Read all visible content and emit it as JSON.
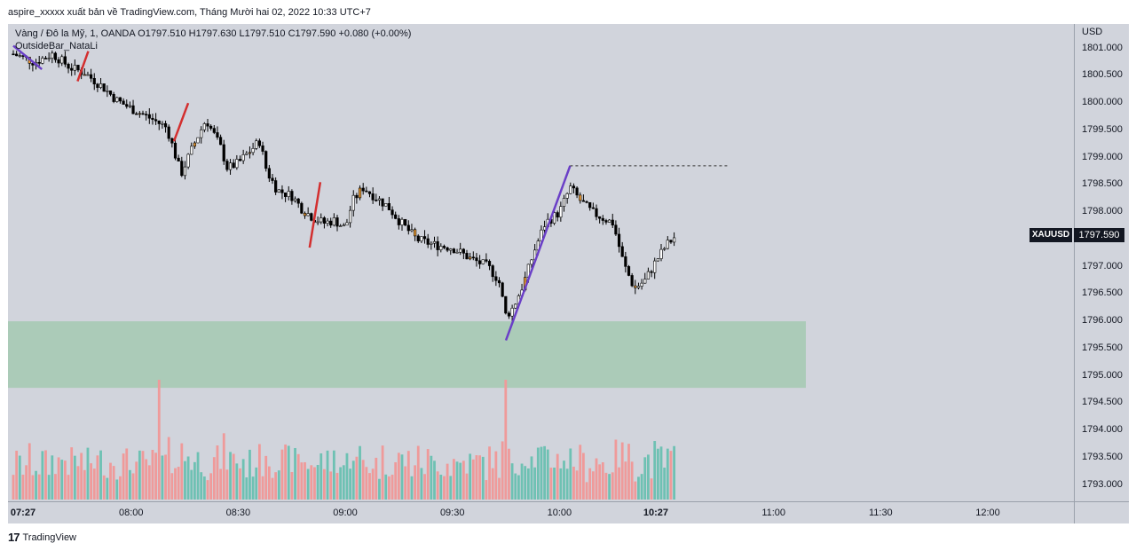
{
  "header": {
    "publish_line": "aspire_xxxxx xuất bản về TradingView.com, Tháng Mười hai 02, 2022 10:33 UTC+7"
  },
  "legend": {
    "symbol_line": "Vàng / Đô la Mỹ, 1, OANDA O1797.510 H1797.630 L1797.510 C1797.590 +0.080 (+0.00%)",
    "indicator": "OutsideBar_NataLi"
  },
  "price_scale": {
    "currency": "USD",
    "labels": [
      "1801.000",
      "1800.500",
      "1800.000",
      "1799.500",
      "1799.000",
      "1798.500",
      "1798.000",
      "1797.500",
      "1797.000",
      "1796.500",
      "1796.000",
      "1795.500",
      "1795.000",
      "1794.500",
      "1794.000",
      "1793.500",
      "1793.000"
    ],
    "symbol_tag": "XAUUSD",
    "last_price": "1797.590"
  },
  "time_axis": {
    "labels": [
      "07:27",
      "08:00",
      "08:30",
      "09:00",
      "09:30",
      "10:00",
      "10:27",
      "11:00",
      "11:30",
      "12:00"
    ]
  },
  "footer": {
    "brand": "TradingView",
    "logo_text": "17"
  },
  "colors": {
    "background": "#d1d4dc",
    "candle_up": "#ffffff",
    "candle_down": "#000000",
    "candle_highlight": "#f2a036",
    "volume_up": "#6ec1b3",
    "volume_down": "#ef9a9a",
    "zone_fill": "#a5c9b1",
    "trend_purple": "#6a3fc7",
    "trend_red": "#d32f2f"
  },
  "chart_data": {
    "type": "candlestick",
    "symbol": "XAUUSD",
    "interval": "1",
    "ylim": [
      1792.7,
      1801.45
    ],
    "x": [
      "07:27",
      "08:00",
      "08:30",
      "09:00",
      "09:30",
      "10:00",
      "10:27",
      "11:00",
      "11:30",
      "12:00"
    ],
    "last_close": 1797.59,
    "close_path": [
      [
        "07:27",
        1800.9
      ],
      [
        "07:33",
        1800.75
      ],
      [
        "07:38",
        1800.9
      ],
      [
        "07:43",
        1800.65
      ],
      [
        "07:47",
        1800.55
      ],
      [
        "07:52",
        1800.3
      ],
      [
        "07:56",
        1800.05
      ],
      [
        "08:00",
        1799.9
      ],
      [
        "08:03",
        1799.8
      ],
      [
        "08:06",
        1799.7
      ],
      [
        "08:10",
        1799.55
      ],
      [
        "08:14",
        1798.7
      ],
      [
        "08:18",
        1799.3
      ],
      [
        "08:21",
        1799.7
      ],
      [
        "08:25",
        1799.2
      ],
      [
        "08:27",
        1798.8
      ],
      [
        "08:30",
        1798.9
      ],
      [
        "08:33",
        1799.1
      ],
      [
        "08:36",
        1799.3
      ],
      [
        "08:38",
        1798.75
      ],
      [
        "08:41",
        1798.4
      ],
      [
        "08:45",
        1798.3
      ],
      [
        "08:48",
        1798.05
      ],
      [
        "08:51",
        1797.9
      ],
      [
        "08:54",
        1797.8
      ],
      [
        "08:57",
        1797.85
      ],
      [
        "09:00",
        1797.7
      ],
      [
        "09:02",
        1798.2
      ],
      [
        "09:05",
        1798.45
      ],
      [
        "09:08",
        1798.3
      ],
      [
        "09:12",
        1798.1
      ],
      [
        "09:15",
        1797.85
      ],
      [
        "09:20",
        1797.5
      ],
      [
        "09:25",
        1797.4
      ],
      [
        "09:30",
        1797.35
      ],
      [
        "09:35",
        1797.15
      ],
      [
        "09:40",
        1797.0
      ],
      [
        "09:43",
        1796.75
      ],
      [
        "09:45",
        1796.1
      ],
      [
        "09:47",
        1796.25
      ],
      [
        "09:50",
        1796.7
      ],
      [
        "09:53",
        1797.3
      ],
      [
        "09:56",
        1797.8
      ],
      [
        "10:00",
        1798.0
      ],
      [
        "10:03",
        1798.45
      ],
      [
        "10:06",
        1798.2
      ],
      [
        "10:09",
        1798.0
      ],
      [
        "10:12",
        1797.9
      ],
      [
        "10:15",
        1797.8
      ],
      [
        "10:18",
        1797.05
      ],
      [
        "10:21",
        1796.6
      ],
      [
        "10:24",
        1796.75
      ],
      [
        "10:27",
        1797.1
      ],
      [
        "10:30",
        1797.4
      ],
      [
        "10:33",
        1797.59
      ]
    ],
    "swing_high_level": 1798.85,
    "demand_zone": [
      1794.78,
      1796.0
    ],
    "swing_lines": [
      {
        "from": [
          "07:27",
          1801.05
        ],
        "to": [
          "07:35",
          1800.62
        ]
      },
      {
        "from": [
          "09:45",
          1795.65
        ],
        "to": [
          "10:03",
          1798.85
        ]
      }
    ]
  }
}
